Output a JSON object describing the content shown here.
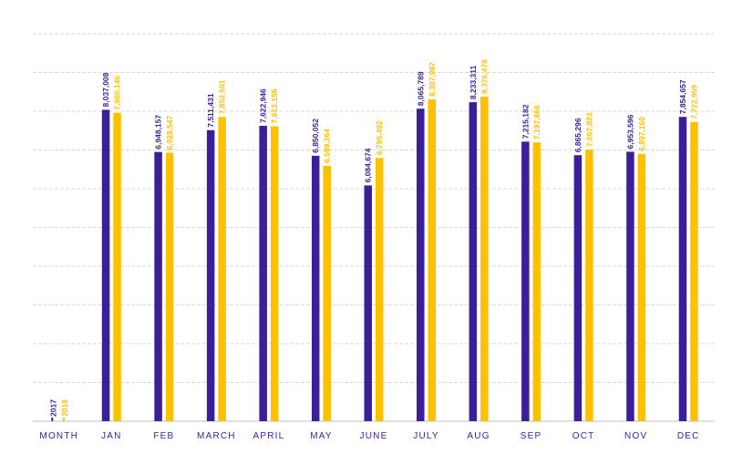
{
  "chart_data": {
    "type": "bar",
    "categories": [
      "MONTH",
      "JAN",
      "FEB",
      "MARCH",
      "APRIL",
      "MAY",
      "JUNE",
      "JULY",
      "AUG",
      "SEP",
      "OCT",
      "NOV",
      "DEC"
    ],
    "series": [
      {
        "name": "2017",
        "color": "#3b1e9a",
        "values": [
          null,
          8037008,
          6948157,
          7511431,
          7622946,
          6850052,
          6084674,
          8065789,
          8233311,
          7215182,
          6865296,
          6953596,
          7854657
        ],
        "labels": [
          "2017",
          "8,037,008",
          "6,948,157",
          "7,511,431",
          "7,622,946",
          "6,850,052",
          "6,084,674",
          "8,065,789",
          "8,233,311",
          "7,215,182",
          "6,865,296",
          "6,953,596",
          "7,854,657"
        ]
      },
      {
        "name": "2018",
        "color": "#ffc000",
        "values": [
          null,
          7960146,
          6928547,
          7852501,
          7613155,
          6589264,
          6795492,
          8307987,
          8376478,
          7197866,
          7007823,
          6897160,
          7722959
        ],
        "labels": [
          "2018",
          "7,960,146",
          "6,928,547",
          "7,852,501",
          "7,613,155",
          "6,589,264",
          "6,795,492",
          "8,307,987",
          "8,376,478",
          "7,197,866",
          "7,007,823",
          "6,897,160",
          "7,722,959"
        ]
      }
    ],
    "ylim": [
      0,
      10000000
    ],
    "grid": true,
    "colors": {
      "category_label": "#3b1e9a",
      "grid": "#d9d9d9"
    }
  }
}
